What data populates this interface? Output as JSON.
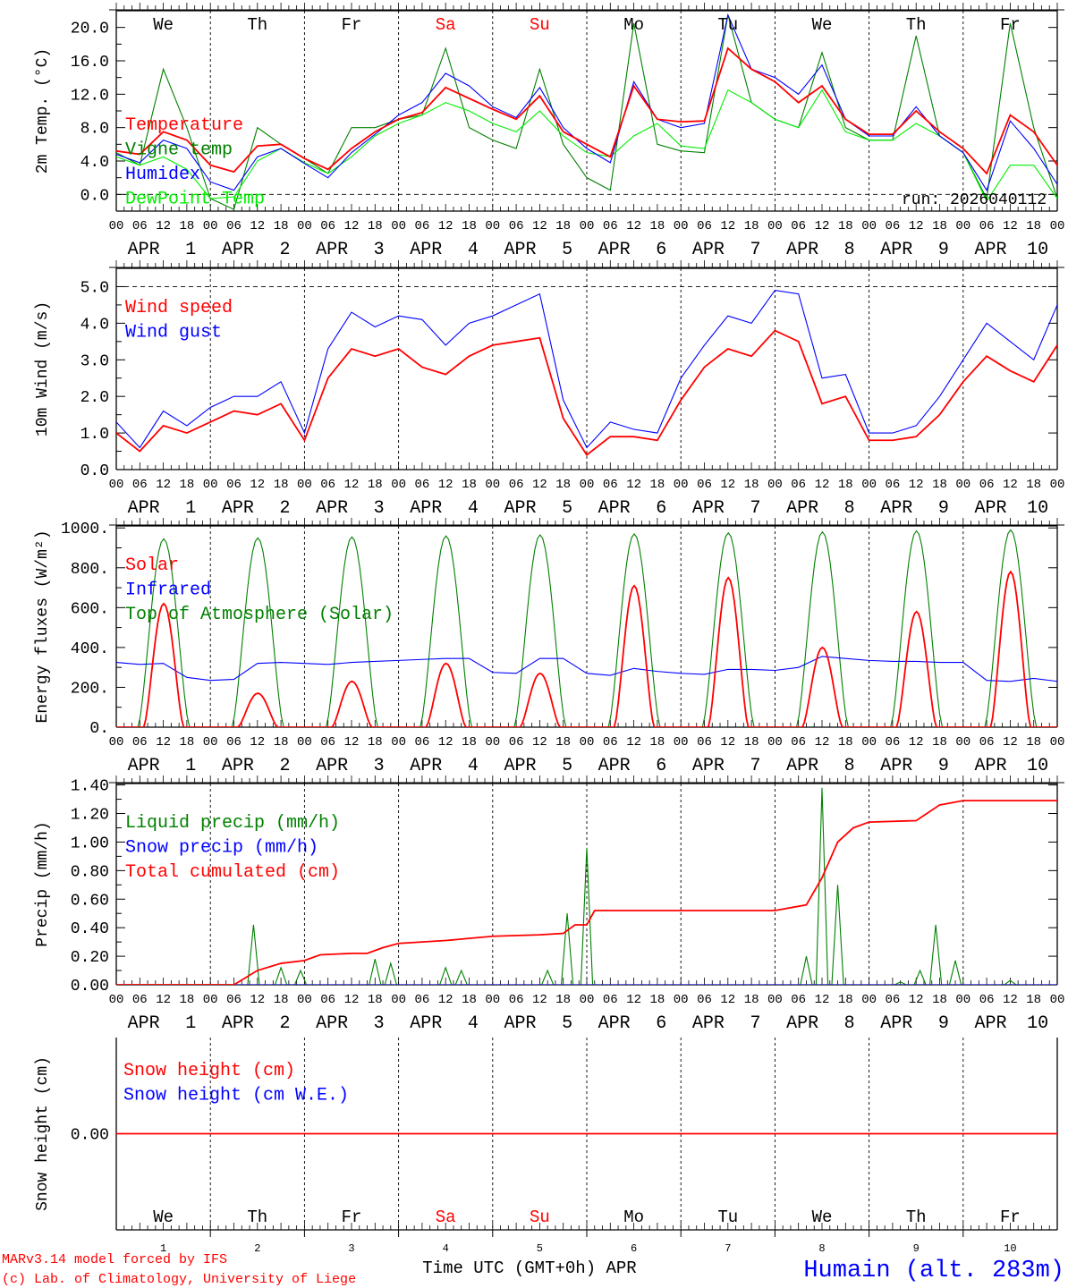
{
  "colors": {
    "red": "#ff0000",
    "blue": "#0000ff",
    "dark_green": "#008000",
    "light_green": "#00ee00",
    "black": "#000000"
  },
  "days": [
    {
      "name": "We",
      "weekend": false,
      "date": "1"
    },
    {
      "name": "Th",
      "weekend": false,
      "date": "2"
    },
    {
      "name": "Fr",
      "weekend": false,
      "date": "3"
    },
    {
      "name": "Sa",
      "weekend": true,
      "date": "4"
    },
    {
      "name": "Su",
      "weekend": true,
      "date": "5"
    },
    {
      "name": "Mo",
      "weekend": false,
      "date": "6"
    },
    {
      "name": "Tu",
      "weekend": false,
      "date": "7"
    },
    {
      "name": "We",
      "weekend": false,
      "date": "8"
    },
    {
      "name": "Th",
      "weekend": false,
      "date": "9"
    },
    {
      "name": "Fr",
      "weekend": false,
      "date": "10"
    }
  ],
  "month": "APR",
  "hour_labels": [
    "00",
    "06",
    "12",
    "18"
  ],
  "footer": {
    "model": "MARv3.14 model forced by IFS",
    "copyright": "(c) Lab. of Climatology, University of Liege",
    "xlabel": "Time UTC (GMT+0h) APR",
    "station": "Humain (alt. 283m)"
  },
  "chart_data": [
    {
      "type": "line",
      "ylabel": "2m Temp. (°C)",
      "ylim": [
        -2,
        22
      ],
      "yticks": [
        "0.0",
        "4.0",
        "8.0",
        "12.0",
        "16.0",
        "20.0"
      ],
      "ytick_values": [
        0,
        4,
        8,
        12,
        16,
        20
      ],
      "ref_line": 0,
      "annotation": "run: 2026040112",
      "x_step_hours": 6,
      "series": [
        {
          "name": "Vigne temp",
          "color": "dark_green",
          "values": [
            5,
            3.5,
            15,
            8,
            -0.5,
            -1.8,
            8,
            6,
            4.3,
            2.5,
            8,
            8,
            9,
            9.5,
            17.5,
            8,
            6.5,
            5.5,
            15,
            6,
            2,
            0.5,
            20.5,
            6,
            5.2,
            5,
            21.5,
            11,
            9,
            8,
            17,
            8,
            6.5,
            6.5,
            19,
            7,
            5,
            -0.5,
            20.5,
            8,
            -0.5
          ]
        },
        {
          "name": "DewPoint Temp",
          "color": "light_green",
          "values": [
            4.5,
            3.5,
            4.5,
            3,
            -0.5,
            -0.3,
            4,
            5.5,
            3.8,
            2.5,
            4.5,
            7,
            8.5,
            9.5,
            11,
            10,
            8.5,
            7.5,
            10,
            7,
            5,
            4.5,
            7,
            8.5,
            5.8,
            5.5,
            12.5,
            11,
            9,
            8,
            12.5,
            7.5,
            6.5,
            6.5,
            8.5,
            7,
            5,
            -0.8,
            3.5,
            3.5,
            -0.5
          ]
        },
        {
          "name": "Humidex",
          "color": "blue",
          "values": [
            4.8,
            3.8,
            6.5,
            5.5,
            1.5,
            0.5,
            4.5,
            5.5,
            3.7,
            2.0,
            5.0,
            7.2,
            9.5,
            11.0,
            14.5,
            13.0,
            10.5,
            9.2,
            12.8,
            8.0,
            5.5,
            3.8,
            13.5,
            9.0,
            8.0,
            8.5,
            21.5,
            15.0,
            14.0,
            12.0,
            15.5,
            9.0,
            7.0,
            7.0,
            10.5,
            7.0,
            5.0,
            0.5,
            8.8,
            5.5,
            1.2
          ]
        },
        {
          "name": "Temperature",
          "color": "red",
          "values": [
            5.2,
            4.8,
            7.5,
            6.5,
            3.5,
            2.7,
            5.8,
            6.0,
            4.3,
            3.0,
            5.5,
            7.5,
            9.0,
            9.8,
            12.8,
            11.5,
            10.2,
            9.0,
            11.8,
            7.5,
            6.0,
            4.5,
            13.0,
            9.0,
            8.7,
            8.8,
            17.5,
            15.0,
            13.5,
            11.0,
            13.0,
            9.0,
            7.2,
            7.2,
            10.0,
            7.5,
            5.5,
            2.5,
            9.5,
            7.5,
            3.5
          ]
        }
      ],
      "legend": [
        "Temperature",
        "Vigne temp",
        "Humidex",
        "DewPoint Temp"
      ]
    },
    {
      "type": "line",
      "ylabel": "10m Wind (m/s)",
      "ylim": [
        0,
        5.5
      ],
      "yticks": [
        "0.0",
        "1.0",
        "2.0",
        "3.0",
        "4.0",
        "5.0"
      ],
      "ytick_values": [
        0,
        1,
        2,
        3,
        4,
        5
      ],
      "ref_line": 5,
      "x_step_hours": 6,
      "series": [
        {
          "name": "Wind gust",
          "color": "blue",
          "values": [
            1.3,
            0.6,
            1.6,
            1.2,
            1.7,
            2.0,
            2.0,
            2.4,
            1.0,
            3.3,
            4.3,
            3.9,
            4.2,
            4.1,
            3.4,
            4.0,
            4.2,
            4.5,
            4.8,
            1.9,
            0.6,
            1.3,
            1.1,
            1.0,
            2.5,
            3.4,
            4.2,
            4.0,
            4.9,
            4.8,
            2.5,
            2.6,
            1.0,
            1.0,
            1.2,
            2.0,
            3.0,
            4.0,
            3.5,
            3.0,
            4.5
          ]
        },
        {
          "name": "Wind speed",
          "color": "red",
          "values": [
            1.0,
            0.5,
            1.2,
            1.0,
            1.3,
            1.6,
            1.5,
            1.8,
            0.8,
            2.5,
            3.3,
            3.1,
            3.3,
            2.8,
            2.6,
            3.1,
            3.4,
            3.5,
            3.6,
            1.4,
            0.4,
            0.9,
            0.9,
            0.8,
            1.9,
            2.8,
            3.3,
            3.1,
            3.8,
            3.5,
            1.8,
            2.0,
            0.8,
            0.8,
            0.9,
            1.5,
            2.4,
            3.1,
            2.7,
            2.4,
            3.4
          ]
        }
      ],
      "legend": [
        "Wind speed",
        "Wind gust"
      ]
    },
    {
      "type": "line",
      "ylabel": "Energy fluxes (W/m²)",
      "ylim": [
        0,
        1010
      ],
      "yticks": [
        "0.",
        "200.",
        "400.",
        "600.",
        "800.",
        "1000."
      ],
      "ytick_values": [
        0,
        200,
        400,
        600,
        800,
        1000
      ],
      "x_step_hours": 6,
      "daily_sun": {
        "sunrise_hour": 5.5,
        "sunset_hour": 18.7
      },
      "series": [
        {
          "name": "Top of Atmosphere (Solar)",
          "color": "dark_green",
          "daily_peaks": [
            945,
            950,
            955,
            960,
            965,
            970,
            975,
            980,
            985,
            990
          ]
        },
        {
          "name": "Infrared",
          "color": "blue",
          "values": [
            325,
            315,
            320,
            250,
            235,
            240,
            320,
            325,
            320,
            315,
            325,
            330,
            335,
            340,
            345,
            345,
            275,
            270,
            345,
            345,
            270,
            260,
            295,
            280,
            270,
            265,
            290,
            290,
            285,
            300,
            355,
            345,
            335,
            330,
            330,
            325,
            325,
            235,
            230,
            245,
            230
          ]
        },
        {
          "name": "Solar",
          "color": "red",
          "daily_peaks": [
            620,
            170,
            230,
            320,
            270,
            710,
            750,
            400,
            580,
            780
          ]
        }
      ],
      "legend": [
        "Solar",
        "Infrared",
        "Top of Atmosphere (Solar)"
      ]
    },
    {
      "type": "line",
      "ylabel": "Precip (mm/h)",
      "ylim": [
        0,
        1.41
      ],
      "yticks": [
        "0.00",
        "0.20",
        "0.40",
        "0.60",
        "0.80",
        "1.00",
        "1.20",
        "1.40"
      ],
      "ytick_values": [
        0,
        0.2,
        0.4,
        0.6,
        0.8,
        1.0,
        1.2,
        1.4
      ],
      "series": [
        {
          "name": "Liquid precip (mm/h)",
          "color": "dark_green",
          "events_hour_value": [
            [
              35,
              0.42
            ],
            [
              42,
              0.12
            ],
            [
              47,
              0.1
            ],
            [
              66,
              0.18
            ],
            [
              70,
              0.15
            ],
            [
              84,
              0.12
            ],
            [
              88,
              0.1
            ],
            [
              110,
              0.1
            ],
            [
              115,
              0.5
            ],
            [
              120,
              0.96
            ],
            [
              176,
              0.2
            ],
            [
              180,
              1.38
            ],
            [
              184,
              0.7
            ],
            [
              200,
              0.02
            ],
            [
              205,
              0.1
            ],
            [
              209,
              0.42
            ],
            [
              214,
              0.17
            ],
            [
              228,
              0.03
            ]
          ]
        },
        {
          "name": "Snow precip (mm/h)",
          "color": "blue",
          "points_hour_value": [
            [
              0,
              0
            ],
            [
              240,
              0
            ]
          ]
        },
        {
          "name": "Total cumulated (cm)",
          "color": "red",
          "points_hour_value": [
            [
              0,
              0
            ],
            [
              30,
              0
            ],
            [
              36,
              0.1
            ],
            [
              42,
              0.15
            ],
            [
              48,
              0.17
            ],
            [
              52,
              0.21
            ],
            [
              60,
              0.22
            ],
            [
              64,
              0.22
            ],
            [
              68,
              0.26
            ],
            [
              72,
              0.29
            ],
            [
              84,
              0.31
            ],
            [
              96,
              0.34
            ],
            [
              108,
              0.35
            ],
            [
              114,
              0.36
            ],
            [
              117,
              0.42
            ],
            [
              120,
              0.42
            ],
            [
              122,
              0.52
            ],
            [
              168,
              0.52
            ],
            [
              176,
              0.56
            ],
            [
              180,
              0.75
            ],
            [
              184,
              1.0
            ],
            [
              188,
              1.1
            ],
            [
              192,
              1.14
            ],
            [
              204,
              1.15
            ],
            [
              210,
              1.26
            ],
            [
              216,
              1.29
            ],
            [
              240,
              1.29
            ]
          ]
        }
      ],
      "legend": [
        "Liquid precip (mm/h)",
        "Snow precip (mm/h)",
        "Total cumulated (cm)"
      ],
      "legend_colors": [
        "dark_green",
        "blue",
        "red"
      ]
    },
    {
      "type": "line",
      "ylabel": "Snow height (cm)",
      "ylim": [
        -1.1,
        1.1
      ],
      "yticks": [
        "0.00"
      ],
      "ytick_values": [
        0
      ],
      "series": [
        {
          "name": "Snow height (cm W.E.)",
          "color": "blue",
          "points_hour_value": [
            [
              0,
              0
            ],
            [
              240,
              0
            ]
          ]
        },
        {
          "name": "Snow height (cm)",
          "color": "red",
          "points_hour_value": [
            [
              0,
              0
            ],
            [
              240,
              0
            ]
          ]
        }
      ],
      "legend": [
        "Snow height (cm)",
        "Snow height (cm W.E.)"
      ],
      "legend_colors": [
        "red",
        "blue"
      ]
    }
  ]
}
